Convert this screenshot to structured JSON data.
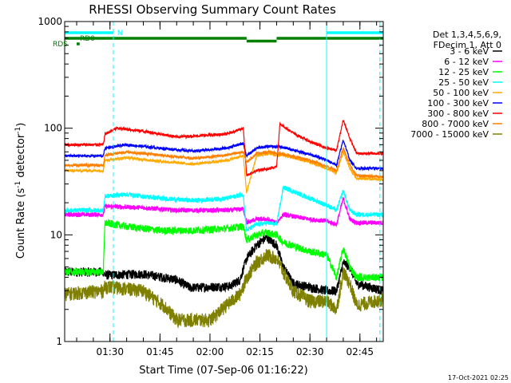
{
  "chart_data": {
    "type": "line",
    "title": "RHESSI Observing Summary Count Rates",
    "xlabel": "Start Time (07-Sep-06 01:16:22)",
    "ylabel": "Count Rate (s-1 detector-1)",
    "ylabel_parts": [
      "Count Rate (s",
      "-1",
      " detector",
      "-1",
      ")"
    ],
    "yscale": "log",
    "ylim": [
      1,
      1000
    ],
    "y_ticks": [
      {
        "value": 1,
        "label": "1"
      },
      {
        "value": 10,
        "label": "10"
      },
      {
        "value": 100,
        "label": "100"
      },
      {
        "value": 1000,
        "label": "1000"
      }
    ],
    "xlim_min": [
      76.4,
      172
    ],
    "x_ticks": [
      {
        "value": 90,
        "label": "01:30"
      },
      {
        "value": 105,
        "label": "01:45"
      },
      {
        "value": 120,
        "label": "02:00"
      },
      {
        "value": 135,
        "label": "02:15"
      },
      {
        "value": 150,
        "label": "02:30"
      },
      {
        "value": 165,
        "label": "02:45"
      }
    ],
    "x_minor_step": 5,
    "date_stamp": "17-Oct-2021 02:25",
    "legend_header": [
      "Det 1,3,4,5,6,9,",
      "FDecim 1, Att 0"
    ],
    "legend_position": "right",
    "attenuator_lines": [
      {
        "x": 91
      },
      {
        "x": 155
      },
      {
        "x": 171
      }
    ],
    "status_bars": [
      {
        "label": "N",
        "color": "#00ffff",
        "level": 0,
        "intervals": [
          [
            76.4,
            91
          ],
          [
            155,
            172
          ]
        ]
      },
      {
        "label": "RD0",
        "color": "#008000",
        "level": 1,
        "intervals": [
          [
            76.4,
            131
          ],
          [
            140,
            172
          ]
        ]
      },
      {
        "label": "",
        "color": "#008000",
        "level": 1.5,
        "intervals": [
          [
            131,
            140
          ]
        ]
      },
      {
        "label": "RDS",
        "color": "#008000",
        "level": 2,
        "intervals": [
          [
            80,
            80.9
          ]
        ]
      }
    ],
    "series": [
      {
        "name": "3 - 6 keV",
        "color": "#000000",
        "noise": 0.1,
        "points": [
          [
            76.4,
            4.5
          ],
          [
            88,
            4.5
          ],
          [
            88.5,
            4.2
          ],
          [
            100,
            4.3
          ],
          [
            110,
            3.8
          ],
          [
            114,
            3.2
          ],
          [
            126,
            3.3
          ],
          [
            129,
            3.8
          ],
          [
            131,
            6
          ],
          [
            134,
            8
          ],
          [
            137,
            9.5
          ],
          [
            140,
            8
          ],
          [
            142,
            5
          ],
          [
            145,
            3.5
          ],
          [
            155,
            3
          ],
          [
            158,
            3
          ],
          [
            160,
            5.5
          ],
          [
            162,
            5
          ],
          [
            164,
            3.5
          ],
          [
            172,
            3
          ]
        ]
      },
      {
        "name": "6 - 12 keV",
        "color": "#ff00ff",
        "noise": 0.05,
        "points": [
          [
            76.4,
            15.5
          ],
          [
            88,
            15.5
          ],
          [
            88.5,
            18.5
          ],
          [
            100,
            18
          ],
          [
            110,
            17
          ],
          [
            120,
            17
          ],
          [
            126,
            17
          ],
          [
            130,
            17.5
          ],
          [
            131,
            13
          ],
          [
            134,
            14
          ],
          [
            137,
            14
          ],
          [
            140,
            13
          ],
          [
            142,
            15.5
          ],
          [
            150,
            14
          ],
          [
            155,
            13.5
          ],
          [
            158,
            12.5
          ],
          [
            160,
            22
          ],
          [
            162,
            14
          ],
          [
            164,
            13
          ],
          [
            172,
            13
          ]
        ]
      },
      {
        "name": "12 - 25 keV",
        "color": "#00ff00",
        "noise": 0.08,
        "points": [
          [
            76.4,
            4.5
          ],
          [
            88,
            4.5
          ],
          [
            88.5,
            13
          ],
          [
            95,
            12
          ],
          [
            105,
            11
          ],
          [
            115,
            11
          ],
          [
            125,
            11.5
          ],
          [
            130,
            12
          ],
          [
            131,
            9
          ],
          [
            134,
            10
          ],
          [
            137,
            10.5
          ],
          [
            140,
            10
          ],
          [
            142,
            8.5
          ],
          [
            150,
            7
          ],
          [
            155,
            6.5
          ],
          [
            158,
            4
          ],
          [
            160,
            7.5
          ],
          [
            162,
            5
          ],
          [
            164,
            4
          ],
          [
            172,
            4
          ]
        ]
      },
      {
        "name": "25 - 50 keV",
        "color": "#00ffff",
        "noise": 0.05,
        "points": [
          [
            76.4,
            17
          ],
          [
            88,
            17
          ],
          [
            88.5,
            23
          ],
          [
            95,
            24
          ],
          [
            105,
            22
          ],
          [
            115,
            21
          ],
          [
            125,
            22
          ],
          [
            130,
            24
          ],
          [
            131,
            11
          ],
          [
            134,
            12.5
          ],
          [
            137,
            13
          ],
          [
            140,
            12.5
          ],
          [
            142,
            28
          ],
          [
            150,
            22
          ],
          [
            155,
            19
          ],
          [
            158,
            17
          ],
          [
            160,
            26
          ],
          [
            162,
            17
          ],
          [
            164,
            15.5
          ],
          [
            172,
            15.5
          ]
        ]
      },
      {
        "name": "50 - 100 keV",
        "color": "#ffaa00",
        "noise": 0.03,
        "points": [
          [
            76.4,
            40
          ],
          [
            88,
            40
          ],
          [
            88.5,
            50
          ],
          [
            95,
            53
          ],
          [
            105,
            49
          ],
          [
            115,
            46
          ],
          [
            125,
            50
          ],
          [
            130,
            55
          ],
          [
            131,
            25
          ],
          [
            134,
            55
          ],
          [
            138,
            58
          ],
          [
            140,
            55
          ],
          [
            142,
            56
          ],
          [
            150,
            48
          ],
          [
            155,
            42
          ],
          [
            158,
            38
          ],
          [
            160,
            60
          ],
          [
            162,
            42
          ],
          [
            164,
            34
          ],
          [
            172,
            33
          ]
        ]
      },
      {
        "name": "100 - 300 keV",
        "color": "#0000ff",
        "noise": 0.03,
        "points": [
          [
            76.4,
            55
          ],
          [
            88,
            55
          ],
          [
            88.5,
            65
          ],
          [
            95,
            70
          ],
          [
            105,
            65
          ],
          [
            115,
            61
          ],
          [
            125,
            65
          ],
          [
            130,
            72
          ],
          [
            131,
            55
          ],
          [
            134,
            65
          ],
          [
            138,
            68
          ],
          [
            140,
            67
          ],
          [
            142,
            66
          ],
          [
            150,
            57
          ],
          [
            155,
            50
          ],
          [
            158,
            45
          ],
          [
            160,
            78
          ],
          [
            162,
            50
          ],
          [
            164,
            42
          ],
          [
            172,
            42
          ]
        ]
      },
      {
        "name": "300 - 800 keV",
        "color": "#ff0000",
        "noise": 0.03,
        "points": [
          [
            76.4,
            70
          ],
          [
            88,
            70
          ],
          [
            88.5,
            88
          ],
          [
            92,
            100
          ],
          [
            100,
            94
          ],
          [
            110,
            83
          ],
          [
            120,
            86
          ],
          [
            125,
            88
          ],
          [
            130,
            100
          ],
          [
            131,
            36
          ],
          [
            134,
            40
          ],
          [
            138,
            42
          ],
          [
            140,
            44
          ],
          [
            141,
            110
          ],
          [
            145,
            90
          ],
          [
            150,
            75
          ],
          [
            155,
            65
          ],
          [
            158,
            62
          ],
          [
            160,
            120
          ],
          [
            162,
            80
          ],
          [
            164,
            58
          ],
          [
            172,
            58
          ]
        ]
      },
      {
        "name": "800 - 7000 keV",
        "color": "#ff8000",
        "noise": 0.03,
        "points": [
          [
            76.4,
            45
          ],
          [
            88,
            45
          ],
          [
            88.5,
            56
          ],
          [
            95,
            60
          ],
          [
            105,
            56
          ],
          [
            115,
            52
          ],
          [
            125,
            56
          ],
          [
            130,
            60
          ],
          [
            131,
            48
          ],
          [
            134,
            58
          ],
          [
            138,
            60
          ],
          [
            140,
            58
          ],
          [
            142,
            57
          ],
          [
            150,
            50
          ],
          [
            155,
            44
          ],
          [
            158,
            40
          ],
          [
            160,
            65
          ],
          [
            162,
            45
          ],
          [
            164,
            36
          ],
          [
            172,
            35
          ]
        ]
      },
      {
        "name": "7000 - 15000 keV",
        "color": "#808000",
        "noise": 0.15,
        "points": [
          [
            76.4,
            2.8
          ],
          [
            88,
            3
          ],
          [
            88.5,
            3.3
          ],
          [
            100,
            3
          ],
          [
            106,
            2.2
          ],
          [
            110,
            1.6
          ],
          [
            120,
            1.6
          ],
          [
            125,
            2.2
          ],
          [
            129,
            2.8
          ],
          [
            131,
            4
          ],
          [
            134,
            5.5
          ],
          [
            137,
            6.5
          ],
          [
            140,
            6
          ],
          [
            142,
            4.5
          ],
          [
            145,
            3
          ],
          [
            150,
            2.4
          ],
          [
            155,
            2.4
          ],
          [
            158,
            2
          ],
          [
            160,
            4.5
          ],
          [
            162,
            3.5
          ],
          [
            164,
            2.2
          ],
          [
            172,
            2.5
          ]
        ]
      }
    ]
  }
}
